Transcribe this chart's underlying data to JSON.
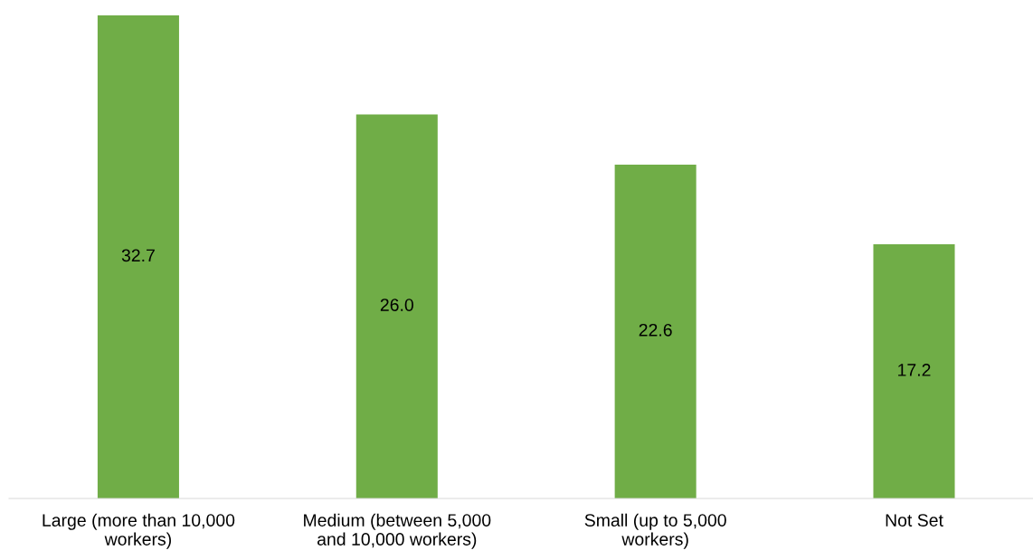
{
  "chart_data": {
    "type": "bar",
    "categories": [
      "Large (more than 10,000\nworkers)",
      "Medium (between 5,000\nand 10,000 workers)",
      "Small (up to 5,000\nworkers)",
      "Not Set"
    ],
    "values": [
      32.7,
      26.0,
      22.6,
      17.2
    ],
    "value_labels": [
      "32.7",
      "26.0",
      "22.6",
      "17.2"
    ],
    "color": "#70ad47",
    "grid": false,
    "legend": false
  }
}
